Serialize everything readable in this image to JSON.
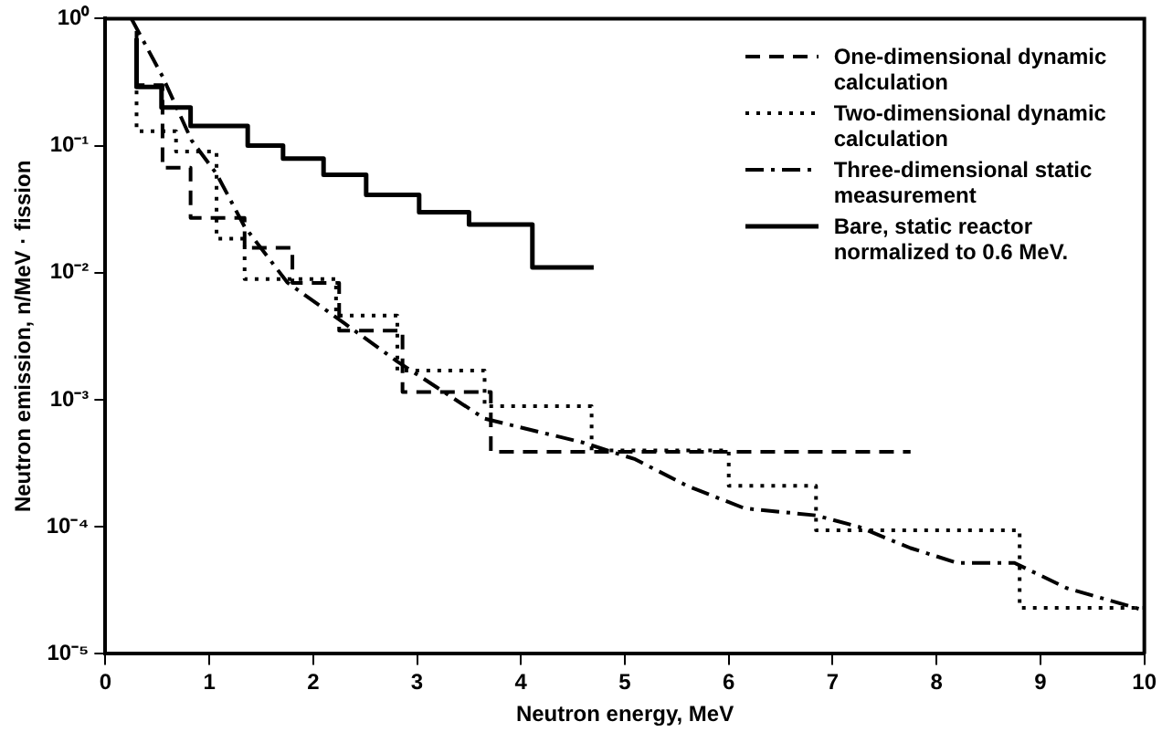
{
  "chart_data": {
    "type": "step",
    "xlabel": "Neutron energy, MeV",
    "ylabel": "Neutron emission, n/MeV · fission",
    "xlim": [
      0,
      10
    ],
    "xticks": [
      0,
      1,
      2,
      3,
      4,
      5,
      6,
      7,
      8,
      9,
      10
    ],
    "ylim": [
      1e-05,
      1
    ],
    "yticks": [
      {
        "value": 1,
        "label": "10⁰"
      },
      {
        "value": 0.1,
        "label": "10⁻¹"
      },
      {
        "value": 0.01,
        "label": "10⁻²"
      },
      {
        "value": 0.001,
        "label": "10⁻³"
      },
      {
        "value": 0.0001,
        "label": "10⁻⁴"
      },
      {
        "value": 1e-05,
        "label": "10⁻⁵"
      }
    ],
    "log": "y",
    "grid": false,
    "legend": "top right",
    "marker": "none",
    "series": [
      {
        "name": "One-dimensional dynamic calculation",
        "line_style": "dashed",
        "color": "#000000",
        "x": [
          0.3,
          0.55,
          0.82,
          1.34,
          1.8,
          2.25,
          2.86,
          3.71,
          6.0,
          7.75
        ],
        "values": [
          0.8,
          0.3,
          0.067,
          0.027,
          0.0157,
          0.0083,
          0.0035,
          0.00115,
          0.00039,
          0.00039
        ]
      },
      {
        "name": "Two-dimensional dynamic calculation",
        "line_style": "dotted",
        "color": "#000000",
        "x": [
          0.3,
          0.68,
          1.07,
          1.34,
          2.22,
          2.81,
          3.65,
          4.68,
          6.0,
          6.84,
          8.8,
          10
        ],
        "values": [
          0.6,
          0.13,
          0.09,
          0.0185,
          0.0089,
          0.0046,
          0.0017,
          0.00089,
          0.0004,
          0.00021,
          9.4e-05,
          2.3e-05
        ]
      },
      {
        "name": "Three-dimensional static measurement",
        "type": "line",
        "line_style": "dashdot",
        "color": "#000000",
        "x": [
          0.25,
          0.55,
          0.83,
          1.07,
          1.34,
          1.75,
          2.3,
          2.81,
          3.65,
          4.6,
          5.1,
          5.6,
          6.15,
          6.84,
          7.25,
          7.75,
          8.2,
          8.75,
          9.25,
          10
        ],
        "values": [
          1,
          0.35,
          0.11,
          0.06,
          0.023,
          0.0084,
          0.004,
          0.002,
          0.00071,
          0.00046,
          0.00034,
          0.00021,
          0.00014,
          0.000123,
          0.0001,
          6.8e-05,
          5.2e-05,
          5.2e-05,
          3.3e-05,
          2.2e-05
        ]
      },
      {
        "name": "Bare, static reactor normalized to 0.6 MeV.",
        "line_style": "solid",
        "color": "#000000",
        "x": [
          0.3,
          0.54,
          0.82,
          1.37,
          1.71,
          2.1,
          2.51,
          3.02,
          3.5,
          4.11,
          4.7
        ],
        "values": [
          0.7,
          0.29,
          0.2,
          0.143,
          0.1,
          0.079,
          0.059,
          0.041,
          0.03,
          0.024,
          0.011
        ]
      }
    ]
  }
}
